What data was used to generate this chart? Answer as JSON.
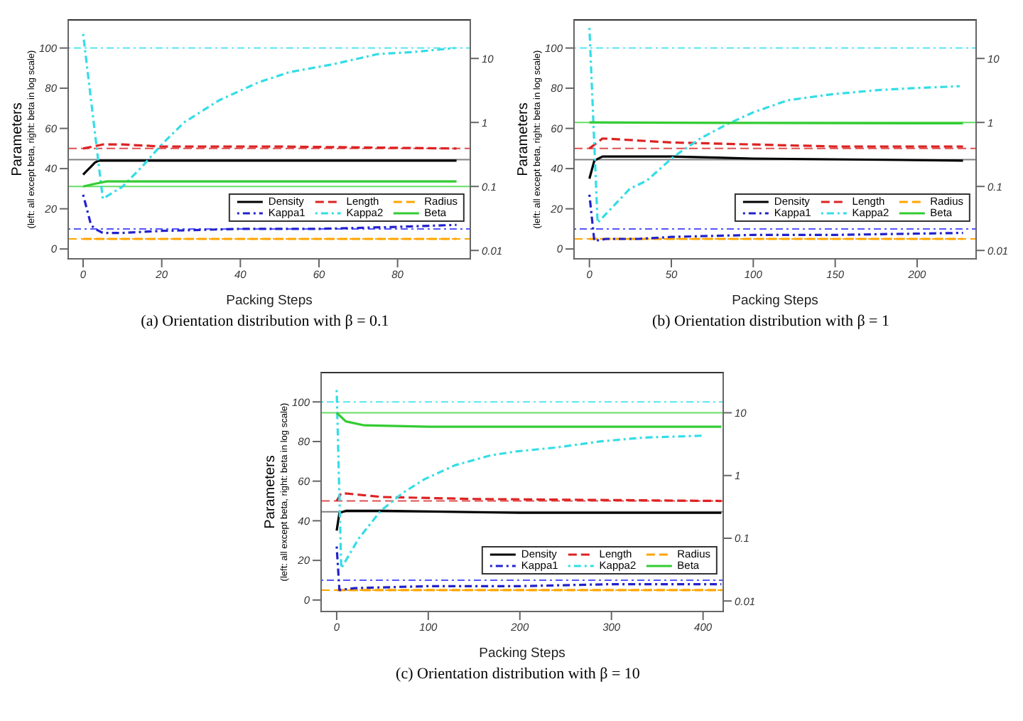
{
  "chart_data": [
    {
      "type": "line",
      "title": "(a) Orientation distribution with β = 0.1",
      "xlabel": "Packing Steps",
      "ylabel": "Parameters\n(left: all except beta, right: beta in log scale)",
      "xlim": [
        -3.8,
        98.5
      ],
      "xticks": [
        0,
        20,
        40,
        60,
        80
      ],
      "ylim": [
        -4.9,
        114
      ],
      "yticks": [
        0,
        20,
        40,
        60,
        80,
        100
      ],
      "y2lim": [
        0.0074,
        40
      ],
      "y2ticks": [
        0.01,
        0.1,
        1,
        10
      ],
      "log": "y2",
      "legend": "bottom right",
      "marker": "none",
      "series": [
        {
          "name": "Density",
          "color": "#000000",
          "line_style": "solid",
          "x": [
            0,
            1,
            2,
            3,
            4,
            6,
            20,
            50,
            95
          ],
          "values": [
            37,
            39,
            41,
            43,
            44,
            44,
            44,
            44,
            44
          ]
        },
        {
          "name": "Length",
          "color": "#dd2222",
          "line_style": "dashed",
          "x": [
            0,
            5,
            10,
            20,
            50,
            95
          ],
          "values": [
            50,
            52,
            52,
            51,
            51,
            50
          ]
        },
        {
          "name": "Radius",
          "color": "#ffa500",
          "line_style": "dashed",
          "x": [
            0,
            95
          ],
          "values": [
            5,
            5
          ]
        },
        {
          "name": "Kappa1",
          "color": "#2222cc",
          "line_style": "dotted",
          "x": [
            0,
            2,
            3,
            5,
            10,
            20,
            40,
            60,
            80,
            95
          ],
          "values": [
            27,
            12,
            10,
            8,
            8,
            9,
            10,
            10,
            11,
            12
          ]
        },
        {
          "name": "Kappa2",
          "color": "#33dde6",
          "line_style": "dotted",
          "x": [
            0,
            5,
            10,
            15,
            20,
            25.7,
            34.6,
            44.7,
            52.5,
            63.8,
            75,
            84,
            94.6
          ],
          "values": [
            107,
            25,
            31,
            41,
            52,
            63,
            74,
            83,
            88,
            92,
            97,
            98,
            100
          ]
        },
        {
          "name": "Beta",
          "color": "#33cc33",
          "line_style": "solid",
          "axis": "y2",
          "x": [
            0,
            3,
            6,
            50,
            95
          ],
          "values": [
            0.1,
            0.11,
            0.12,
            0.12,
            0.12
          ]
        }
      ],
      "ref_lines": [
        {
          "axis": "y",
          "value": 44.5,
          "color": "#808080",
          "line_style": "solid"
        },
        {
          "axis": "y",
          "value": 50,
          "color": "#e05050",
          "line_style": "dashed"
        },
        {
          "axis": "y",
          "value": 5,
          "color": "#ffa500",
          "line_style": "dashed"
        },
        {
          "axis": "y",
          "value": 10,
          "color": "#5555ff",
          "line_style": "dotted"
        },
        {
          "axis": "y",
          "value": 100,
          "color": "#55e6ee",
          "line_style": "dotted"
        },
        {
          "axis": "y2",
          "value": 0.1,
          "color": "#66dd66",
          "line_style": "solid"
        }
      ]
    },
    {
      "type": "line",
      "title": "(b) Orientation distribution with β = 1",
      "xlabel": "Packing Steps",
      "ylabel": "Parameters\n(left: all except beta, right: beta in log scale)",
      "xlim": [
        -9.4,
        236
      ],
      "xticks": [
        0,
        50,
        100,
        150,
        200
      ],
      "ylim": [
        -4.9,
        114
      ],
      "yticks": [
        0,
        20,
        40,
        60,
        80,
        100
      ],
      "y2lim": [
        0.0074,
        40
      ],
      "y2ticks": [
        0.01,
        0.1,
        1,
        10
      ],
      "log": "y2",
      "legend": "bottom right",
      "marker": "none",
      "series": [
        {
          "name": "Density",
          "color": "#000000",
          "line_style": "solid",
          "x": [
            0,
            3,
            8,
            50,
            100,
            228
          ],
          "values": [
            35,
            44,
            46,
            46,
            45,
            44
          ]
        },
        {
          "name": "Length",
          "color": "#dd2222",
          "line_style": "dashed",
          "x": [
            0,
            8,
            50,
            100,
            150,
            228
          ],
          "values": [
            50,
            55,
            53,
            52,
            51,
            51
          ]
        },
        {
          "name": "Radius",
          "color": "#ffa500",
          "line_style": "dashed",
          "x": [
            0,
            228
          ],
          "values": [
            5,
            5
          ]
        },
        {
          "name": "Kappa1",
          "color": "#2222cc",
          "line_style": "dotted",
          "x": [
            0,
            3,
            10,
            30,
            50,
            100,
            150,
            228
          ],
          "values": [
            27,
            4,
            5,
            5,
            6,
            7,
            7,
            8
          ]
        },
        {
          "name": "Kappa2",
          "color": "#33dde6",
          "line_style": "dotted",
          "x": [
            0,
            5,
            24.7,
            35,
            51.5,
            67.7,
            83.8,
            100,
            121,
            148,
            175,
            196.5,
            226
          ],
          "values": [
            110,
            13,
            30,
            34,
            46,
            55,
            62,
            68,
            74,
            77,
            79,
            80,
            81
          ]
        },
        {
          "name": "Beta",
          "color": "#33cc33",
          "line_style": "solid",
          "axis": "y2",
          "x": [
            0,
            100,
            228
          ],
          "values": [
            1,
            0.98,
            0.97
          ]
        }
      ],
      "ref_lines": [
        {
          "axis": "y",
          "value": 44.5,
          "color": "#808080",
          "line_style": "solid"
        },
        {
          "axis": "y",
          "value": 50,
          "color": "#e05050",
          "line_style": "dashed"
        },
        {
          "axis": "y",
          "value": 5,
          "color": "#ffa500",
          "line_style": "dashed"
        },
        {
          "axis": "y",
          "value": 10,
          "color": "#5555ff",
          "line_style": "dotted"
        },
        {
          "axis": "y",
          "value": 100,
          "color": "#55e6ee",
          "line_style": "dotted"
        },
        {
          "axis": "y2",
          "value": 1,
          "color": "#66dd66",
          "line_style": "solid"
        }
      ]
    },
    {
      "type": "line",
      "title": "(c) Orientation distribution with β = 10",
      "xlabel": "Packing Steps",
      "ylabel": "Parameters\n(left: all except beta, right: beta in log scale)",
      "xlim": [
        -17,
        422
      ],
      "xticks": [
        0,
        100,
        200,
        300,
        400
      ],
      "ylim": [
        -5.8,
        114.8
      ],
      "yticks": [
        0,
        20,
        40,
        60,
        80,
        100
      ],
      "y2lim": [
        0.0068,
        43.7
      ],
      "y2ticks": [
        0.01,
        0.1,
        1,
        10
      ],
      "log": "y2",
      "legend": "bottom right",
      "marker": "none",
      "series": [
        {
          "name": "Density",
          "color": "#000000",
          "line_style": "solid",
          "x": [
            0,
            3,
            10,
            50,
            200,
            420
          ],
          "values": [
            35,
            44,
            45,
            45,
            44,
            44
          ]
        },
        {
          "name": "Length",
          "color": "#dd2222",
          "line_style": "dashed",
          "x": [
            0,
            5,
            50,
            150,
            420
          ],
          "values": [
            50,
            54,
            52,
            51,
            50
          ]
        },
        {
          "name": "Radius",
          "color": "#ffa500",
          "line_style": "dashed",
          "x": [
            0,
            420
          ],
          "values": [
            5,
            5
          ]
        },
        {
          "name": "Kappa1",
          "color": "#2222cc",
          "line_style": "dotted",
          "x": [
            0,
            3,
            20,
            100,
            200,
            300,
            420
          ],
          "values": [
            27,
            5,
            6,
            7,
            7,
            8,
            8
          ]
        },
        {
          "name": "Kappa2",
          "color": "#33dde6",
          "line_style": "dotted",
          "x": [
            0,
            5,
            24,
            48,
            72,
            96,
            129,
            168,
            196,
            240,
            287,
            335,
            402
          ],
          "values": [
            106,
            16,
            31,
            45,
            54,
            61,
            68,
            73,
            75,
            77,
            80,
            82,
            83
          ]
        },
        {
          "name": "Beta",
          "color": "#33cc33",
          "line_style": "solid",
          "axis": "y2",
          "x": [
            0,
            10,
            30,
            100,
            420
          ],
          "values": [
            10,
            7.3,
            6.3,
            6,
            6
          ]
        }
      ],
      "ref_lines": [
        {
          "axis": "y",
          "value": 44.5,
          "color": "#808080",
          "line_style": "solid"
        },
        {
          "axis": "y",
          "value": 50,
          "color": "#e05050",
          "line_style": "dashed"
        },
        {
          "axis": "y",
          "value": 5,
          "color": "#ffa500",
          "line_style": "dashed"
        },
        {
          "axis": "y",
          "value": 10,
          "color": "#5555ff",
          "line_style": "dotted"
        },
        {
          "axis": "y",
          "value": 100,
          "color": "#55e6ee",
          "line_style": "dotted"
        },
        {
          "axis": "y2",
          "value": 10,
          "color": "#66dd66",
          "line_style": "solid"
        }
      ]
    }
  ]
}
